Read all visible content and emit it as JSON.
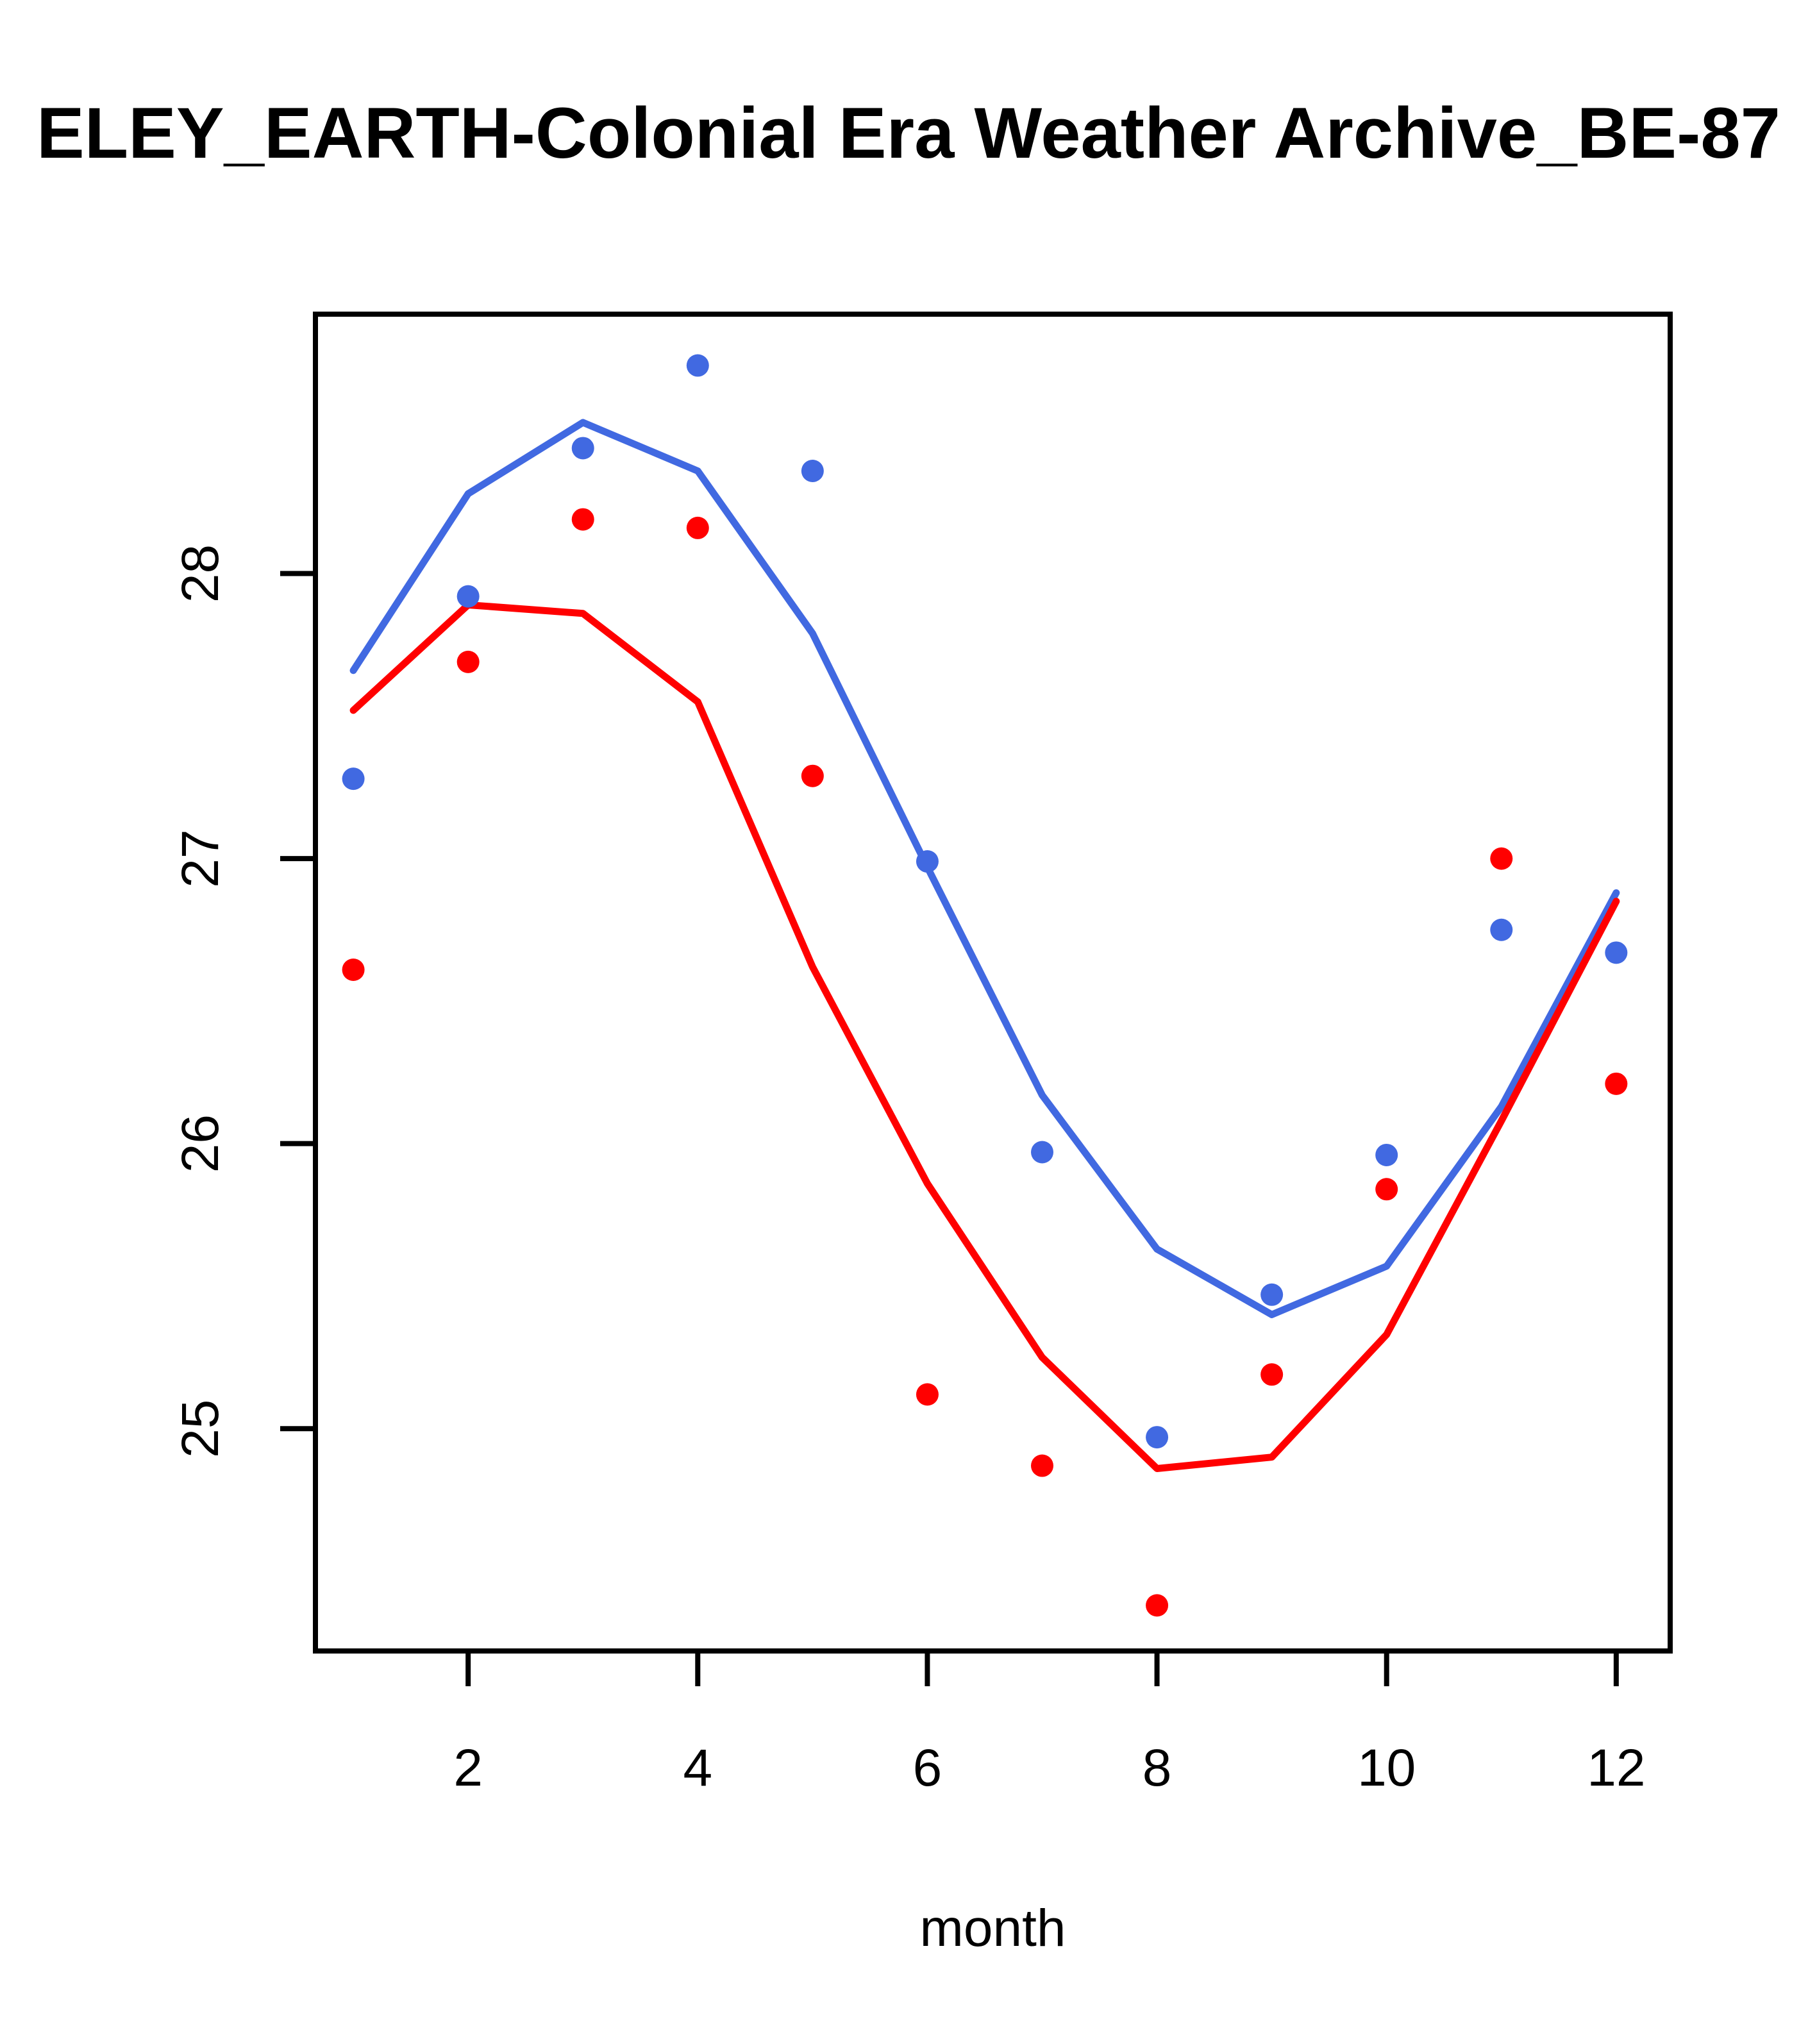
{
  "chart_data": {
    "type": "scatter",
    "title": "ELEY_EARTH-Colonial Era Weather Archive_BE-87",
    "xlabel": "month",
    "ylabel": "",
    "x_ticks": [
      2,
      4,
      6,
      8,
      10,
      12
    ],
    "y_ticks": [
      25,
      26,
      27,
      28
    ],
    "xlim": [
      0.67,
      12.47
    ],
    "ylim": [
      24.22,
      28.91
    ],
    "grid": false,
    "legend": "none",
    "x": [
      1,
      2,
      3,
      4,
      5,
      6,
      7,
      8,
      9,
      10,
      11,
      12
    ],
    "series": [
      {
        "name": "blue-points",
        "type": "points",
        "color": "#4169E1",
        "values": [
          27.28,
          27.92,
          28.44,
          28.73,
          28.36,
          26.99,
          25.97,
          24.97,
          25.47,
          25.96,
          26.75,
          26.67
        ]
      },
      {
        "name": "red-points",
        "type": "points",
        "color": "#FF0000",
        "values": [
          26.61,
          27.69,
          28.19,
          28.16,
          27.29,
          25.12,
          24.87,
          24.38,
          25.19,
          25.84,
          27.0,
          26.21
        ]
      },
      {
        "name": "blue-smooth-line",
        "type": "line",
        "color": "#4169E1",
        "values": [
          27.66,
          28.28,
          28.53,
          28.36,
          27.79,
          26.97,
          26.17,
          25.63,
          25.4,
          25.57,
          26.13,
          26.88
        ]
      },
      {
        "name": "red-smooth-line",
        "type": "line",
        "color": "#FF0000",
        "values": [
          27.52,
          27.89,
          27.86,
          27.55,
          26.62,
          25.86,
          25.25,
          24.86,
          24.9,
          25.33,
          26.08,
          26.85
        ]
      }
    ]
  },
  "colors": {
    "blue": "#4169E1",
    "red": "#FF0000",
    "axis": "#000000",
    "background": "#FFFFFF"
  }
}
